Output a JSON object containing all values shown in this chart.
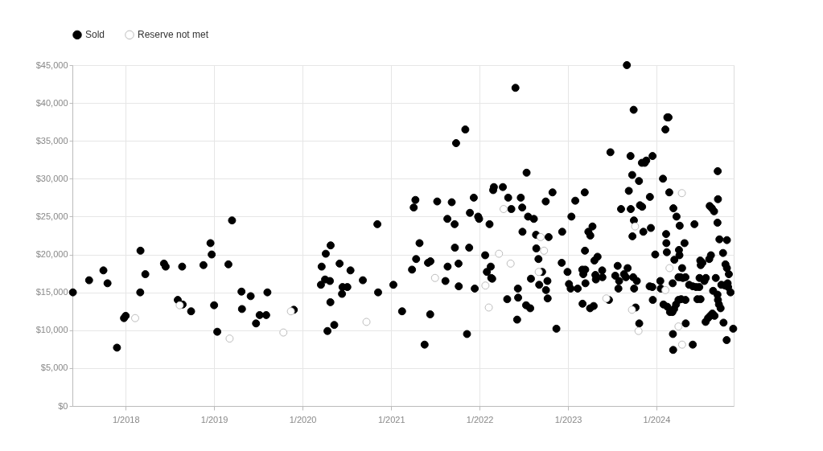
{
  "chart_data": {
    "type": "scatter",
    "marker": "circle",
    "grid": true,
    "legend": "top left",
    "xlim": [
      "2017-05-26",
      "2024-11-15"
    ],
    "xticks": [
      {
        "value": "2018-01-01",
        "label": "1/2018"
      },
      {
        "value": "2019-01-01",
        "label": "1/2019"
      },
      {
        "value": "2020-01-01",
        "label": "1/2020"
      },
      {
        "value": "2021-01-01",
        "label": "1/2021"
      },
      {
        "value": "2022-01-01",
        "label": "1/2022"
      },
      {
        "value": "2023-01-01",
        "label": "1/2023"
      },
      {
        "value": "2024-01-01",
        "label": "1/2024"
      }
    ],
    "ylim": [
      0,
      45000
    ],
    "yticks": [
      {
        "value": 0,
        "label": "$0"
      },
      {
        "value": 5000,
        "label": "$5,000"
      },
      {
        "value": 10000,
        "label": "$10,000"
      },
      {
        "value": 15000,
        "label": "$15,000"
      },
      {
        "value": 20000,
        "label": "$20,000"
      },
      {
        "value": 25000,
        "label": "$25,000"
      },
      {
        "value": 30000,
        "label": "$30,000"
      },
      {
        "value": 35000,
        "label": "$35,000"
      },
      {
        "value": 40000,
        "label": "$40,000"
      },
      {
        "value": 45000,
        "label": "$45,000"
      }
    ],
    "series": [
      {
        "name": "Sold",
        "color": "#000000",
        "x": [
          "2017-05-28",
          "2017-08-03",
          "2017-10-01",
          "2017-10-18",
          "2017-11-26",
          "2017-12-25",
          "2018-01-01",
          "2018-03-03",
          "2018-03-02",
          "2018-03-23",
          "2018-06-08",
          "2018-06-15",
          "2018-08-22",
          "2018-08-04",
          "2018-08-24",
          "2018-09-28",
          "2018-11-18",
          "2018-12-17",
          "2018-12-22",
          "2019-01-01",
          "2019-01-14",
          "2019-03-01",
          "2019-03-16",
          "2019-04-24",
          "2019-04-26",
          "2019-06-01",
          "2019-06-23",
          "2019-07-08",
          "2019-08-04",
          "2019-08-09",
          "2019-11-26",
          "2020-03-17",
          "2020-03-20",
          "2020-04-03",
          "2020-04-23",
          "2020-04-06",
          "2020-04-26",
          "2020-04-25",
          "2020-04-13",
          "2020-05-11",
          "2020-06-02",
          "2020-06-12",
          "2020-06-14",
          "2020-07-04",
          "2020-07-17",
          "2020-09-06",
          "2020-11-05",
          "2020-11-08",
          "2021-01-10",
          "2021-02-15",
          "2021-03-28",
          "2021-04-04",
          "2021-04-11",
          "2021-04-14",
          "2021-04-28",
          "2021-05-19",
          "2021-06-11",
          "2021-06-02",
          "2021-06-12",
          "2021-07-10",
          "2021-08-13",
          "2021-08-22",
          "2021-08-21",
          "2021-09-08",
          "2021-09-20",
          "2021-09-21",
          "2021-10-06",
          "2021-10-07",
          "2021-09-26",
          "2021-11-03",
          "2021-11-10",
          "2021-11-19",
          "2021-11-22",
          "2021-12-08",
          "2021-12-12",
          "2021-12-26",
          "2021-12-30",
          "2022-01-24",
          "2022-02-11",
          "2022-02-16",
          "2022-01-31",
          "2022-02-18",
          "2022-02-22",
          "2022-02-26",
          "2022-03-01",
          "2022-04-07",
          "2022-04-29",
          "2022-05-12",
          "2022-04-25",
          "2022-06-08",
          "2022-06-09",
          "2022-06-05",
          "2022-05-29",
          "2022-06-20",
          "2022-06-26",
          "2022-06-27",
          "2022-07-14",
          "2022-07-20",
          "2022-07-12",
          "2022-07-29",
          "2022-08-01",
          "2022-08-13",
          "2022-08-22",
          "2022-08-23",
          "2022-09-01",
          "2022-09-16",
          "2022-09-04",
          "2022-10-13",
          "2022-10-08",
          "2022-10-02",
          "2022-10-09",
          "2022-10-01",
          "2022-10-29",
          "2022-11-14",
          "2022-12-08",
          "2022-12-06",
          "2022-12-30",
          "2023-01-05",
          "2023-01-12",
          "2023-01-15",
          "2023-01-31",
          "2023-02-10",
          "2023-03-11",
          "2023-03-12",
          "2023-03-02",
          "2023-03-01",
          "2023-03-13",
          "2023-03-05",
          "2023-03-14",
          "2023-04-02",
          "2023-04-17",
          "2023-03-26",
          "2023-04-12",
          "2023-04-03",
          "2023-04-20",
          "2023-05-03",
          "2023-04-24",
          "2023-04-26",
          "2023-05-23",
          "2023-05-22",
          "2023-06-25",
          "2023-06-19",
          "2023-07-15",
          "2023-07-25",
          "2023-07-31",
          "2023-07-28",
          "2023-08-08",
          "2023-08-20",
          "2023-08-28",
          "2023-09-04",
          "2023-09-01",
          "2023-09-09",
          "2023-09-16",
          "2023-09-23",
          "2023-09-17",
          "2023-09-30",
          "2023-09-24",
          "2023-09-29",
          "2023-10-21",
          "2023-10-25",
          "2023-11-03",
          "2023-11-08",
          "2023-09-27",
          "2023-10-12",
          "2023-10-01",
          "2023-10-07",
          "2023-10-22",
          "2023-11-02",
          "2023-11-14",
          "2023-11-20",
          "2023-12-16",
          "2023-12-09",
          "2023-12-05",
          "2023-12-27",
          "2023-12-04",
          "2023-12-15",
          "2023-12-17",
          "2024-01-28",
          "2024-02-07",
          "2024-02-15",
          "2024-02-20",
          "2024-02-23",
          "2024-03-11",
          "2024-03-24",
          "2024-04-06",
          "2024-06-06",
          "2024-02-10",
          "2024-02-11",
          "2024-02-13",
          "2024-04-26",
          "2024-04-03",
          "2024-04-05",
          "2024-03-15",
          "2024-04-16",
          "2024-01-17",
          "2024-01-19",
          "2024-01-30",
          "2024-02-15",
          "2024-02-26",
          "2024-03-07",
          "2024-03-14",
          "2024-03-22",
          "2024-04-01",
          "2024-04-12",
          "2024-04-30",
          "2024-03-09",
          "2024-03-10",
          "2024-05-01",
          "2024-05-30",
          "2024-03-08",
          "2024-04-01",
          "2024-04-09",
          "2024-04-19",
          "2024-04-30",
          "2024-05-15",
          "2024-05-30",
          "2024-06-13",
          "2024-06-26",
          "2024-06-18",
          "2024-07-01",
          "2024-07-02",
          "2024-07-09",
          "2024-06-30",
          "2024-06-27",
          "2024-07-17",
          "2024-07-23",
          "2024-08-06",
          "2024-08-13",
          "2024-08-08",
          "2024-08-17",
          "2024-08-26",
          "2024-09-09",
          "2024-09-11",
          "2024-09-10",
          "2024-09-17",
          "2024-10-18",
          "2024-10-02",
          "2024-10-12",
          "2024-10-18",
          "2024-10-26",
          "2024-09-02",
          "2024-08-22",
          "2024-09-09",
          "2024-09-11",
          "2024-09-15",
          "2024-09-22",
          "2024-09-25",
          "2024-10-10",
          "2024-10-21",
          "2024-10-23",
          "2024-11-02",
          "2024-07-22",
          "2024-08-01",
          "2024-08-10",
          "2024-08-19",
          "2024-08-28",
          "2024-10-04",
          "2024-10-17",
          "2024-11-13"
        ],
        "values": [
          15000,
          16600,
          17900,
          16200,
          7700,
          11600,
          11900,
          20500,
          15000,
          17400,
          18800,
          18400,
          18400,
          14000,
          13400,
          12500,
          18600,
          21500,
          20000,
          13300,
          9800,
          18700,
          24500,
          15100,
          12800,
          14500,
          10900,
          12000,
          12000,
          15000,
          12700,
          16000,
          18400,
          16700,
          16500,
          20100,
          21200,
          13700,
          9900,
          10700,
          18800,
          14800,
          15700,
          15700,
          17900,
          16600,
          24000,
          15000,
          16000,
          12500,
          18000,
          26200,
          27200,
          19400,
          21500,
          8100,
          12100,
          18900,
          19100,
          27000,
          16500,
          18400,
          24700,
          26900,
          24000,
          20900,
          18800,
          15800,
          34700,
          36500,
          9500,
          20900,
          25500,
          27500,
          15500,
          25000,
          24700,
          19900,
          24000,
          18400,
          17700,
          16900,
          16800,
          28500,
          28900,
          28900,
          27500,
          26000,
          14100,
          15500,
          14300,
          11400,
          42000,
          27500,
          26200,
          23000,
          30800,
          25000,
          13300,
          12900,
          16800,
          24700,
          22600,
          20800,
          19400,
          17700,
          16000,
          22300,
          16500,
          15300,
          14200,
          27000,
          28200,
          10200,
          23000,
          18900,
          17700,
          16100,
          15500,
          25000,
          27100,
          15500,
          28200,
          20500,
          13500,
          18000,
          18000,
          17400,
          16200,
          12900,
          13200,
          23000,
          23700,
          22500,
          19200,
          19700,
          17300,
          16700,
          17000,
          17900,
          33500,
          14000,
          17200,
          18500,
          16500,
          15500,
          26000,
          17400,
          17000,
          18200,
          45000,
          28400,
          33000,
          30500,
          26000,
          24500,
          22400,
          39100,
          29700,
          26500,
          26300,
          23000,
          17000,
          16500,
          15500,
          13000,
          10900,
          32100,
          32100,
          32400,
          33000,
          23500,
          27600,
          20000,
          15800,
          15700,
          14000,
          30000,
          36500,
          38100,
          38100,
          28200,
          26100,
          25000,
          23800,
          24000,
          22700,
          21500,
          20300,
          21500,
          20600,
          19900,
          19300,
          18200,
          16500,
          15500,
          13400,
          13100,
          12400,
          12400,
          12800,
          13400,
          14000,
          14100,
          14000,
          9500,
          7400,
          10900,
          8100,
          16200,
          17000,
          17000,
          16900,
          17000,
          16000,
          15800,
          15700,
          15700,
          14100,
          14100,
          18600,
          18900,
          19200,
          16900,
          16500,
          16900,
          19400,
          19900,
          26400,
          26100,
          25700,
          24200,
          27300,
          31000,
          22000,
          21900,
          20200,
          18700,
          18200,
          17400,
          16900,
          15200,
          14700,
          14000,
          13400,
          12900,
          16000,
          15900,
          16200,
          15700,
          15000,
          11100,
          11600,
          11900,
          12200,
          11900,
          11000,
          8700,
          10200
        ]
      },
      {
        "name": "Reserve not met",
        "color": "#bdbdbd",
        "x": [
          "2018-02-09",
          "2018-08-12",
          "2019-03-06",
          "2019-10-14",
          "2019-11-14",
          "2020-09-21",
          "2021-07-01",
          "2022-01-25",
          "2022-02-08",
          "2022-03-22",
          "2022-04-10",
          "2022-05-09",
          "2022-09-10",
          "2022-09-24",
          "2022-09-02",
          "2023-06-08",
          "2023-10-05",
          "2023-09-22",
          "2023-10-19",
          "2024-04-15",
          "2024-02-24",
          "2024-02-07",
          "2024-04-01",
          "2024-04-16"
        ],
        "values": [
          11600,
          13300,
          8900,
          9700,
          12500,
          11100,
          16900,
          15900,
          13000,
          20100,
          26000,
          18800,
          22300,
          20500,
          17700,
          14200,
          23700,
          12700,
          9900,
          28100,
          18200,
          15300,
          10500,
          8100
        ]
      }
    ]
  }
}
